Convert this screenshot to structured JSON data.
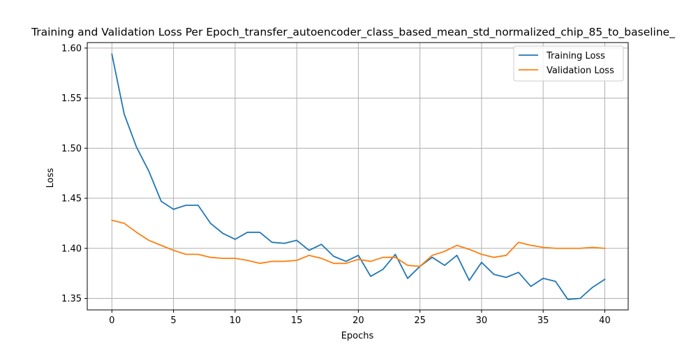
{
  "chart_data": {
    "type": "line",
    "title": "Training and Validation Loss Per Epoch_transfer_autoencoder_class_based_mean_std_normalized_chip_85_to_baseline_",
    "xlabel": "Epochs",
    "ylabel": "Loss",
    "xlim": [
      -2,
      41.9
    ],
    "ylim": [
      1.3385,
      1.6055
    ],
    "xticks": [
      0,
      5,
      10,
      15,
      20,
      25,
      30,
      35,
      40
    ],
    "xtick_labels": [
      "0",
      "5",
      "10",
      "15",
      "20",
      "25",
      "30",
      "35",
      "40"
    ],
    "yticks": [
      1.35,
      1.4,
      1.45,
      1.5,
      1.55,
      1.6
    ],
    "ytick_labels": [
      "1.35",
      "1.40",
      "1.45",
      "1.50",
      "1.55",
      "1.60"
    ],
    "grid": true,
    "legend_position": "top-right",
    "x": [
      0,
      1,
      2,
      3,
      4,
      5,
      6,
      7,
      8,
      9,
      10,
      11,
      12,
      13,
      14,
      15,
      16,
      17,
      18,
      19,
      20,
      21,
      22,
      23,
      24,
      25,
      26,
      27,
      28,
      29,
      30,
      31,
      32,
      33,
      34,
      35,
      36,
      37,
      38,
      39,
      40
    ],
    "series": [
      {
        "name": "Training Loss",
        "color": "#1f77b4",
        "values": [
          1.594,
          1.534,
          1.501,
          1.477,
          1.447,
          1.439,
          1.443,
          1.443,
          1.425,
          1.415,
          1.409,
          1.416,
          1.416,
          1.406,
          1.405,
          1.408,
          1.398,
          1.404,
          1.392,
          1.387,
          1.393,
          1.372,
          1.379,
          1.394,
          1.37,
          1.382,
          1.391,
          1.383,
          1.393,
          1.368,
          1.386,
          1.374,
          1.371,
          1.376,
          1.362,
          1.37,
          1.367,
          1.349,
          1.35,
          1.361,
          1.369
        ]
      },
      {
        "name": "Validation Loss",
        "color": "#ff7f0e",
        "values": [
          1.428,
          1.425,
          1.416,
          1.408,
          1.403,
          1.398,
          1.394,
          1.394,
          1.391,
          1.39,
          1.39,
          1.388,
          1.385,
          1.387,
          1.387,
          1.388,
          1.393,
          1.39,
          1.385,
          1.385,
          1.389,
          1.387,
          1.391,
          1.391,
          1.383,
          1.382,
          1.393,
          1.397,
          1.403,
          1.399,
          1.394,
          1.391,
          1.393,
          1.406,
          1.403,
          1.401,
          1.4,
          1.4,
          1.4,
          1.401,
          1.4
        ]
      }
    ]
  }
}
